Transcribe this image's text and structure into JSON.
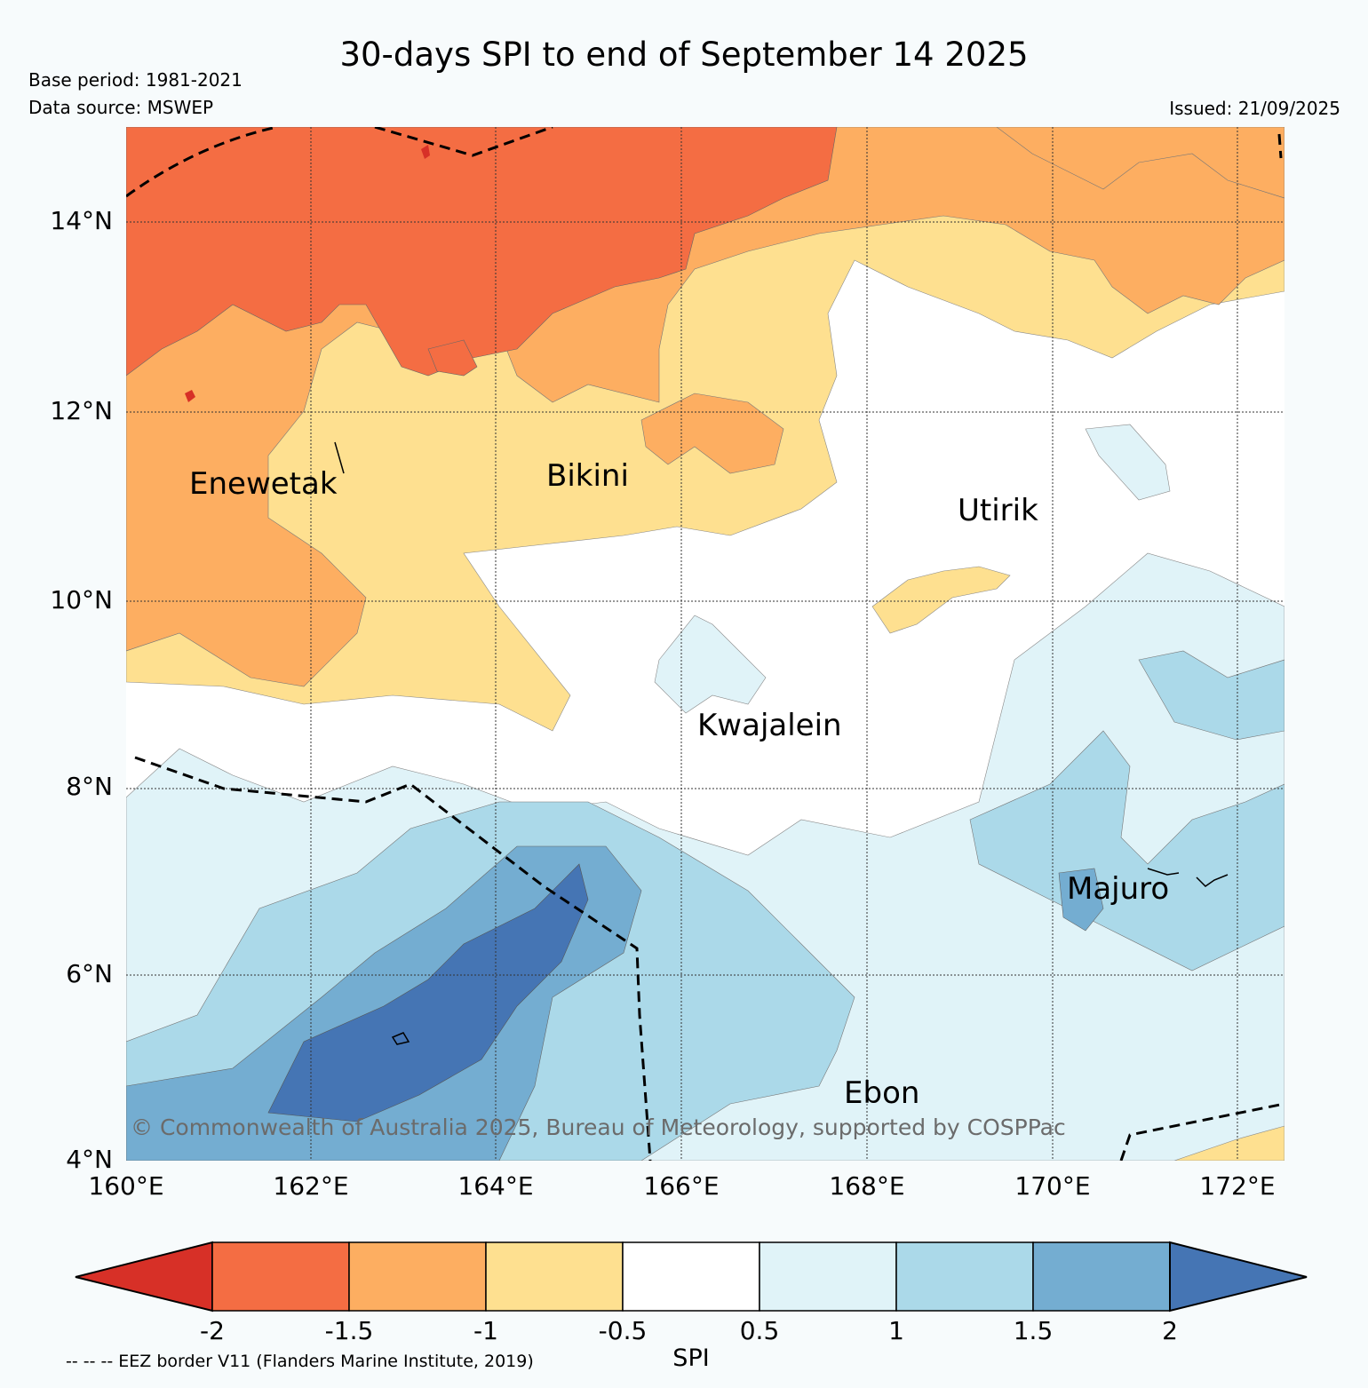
{
  "title": "30-days SPI to end of September 14 2025",
  "base_period": "Base period: 1981-2021",
  "data_source": "Data source: MSWEP",
  "issued": "Issued: 21/09/2025",
  "latitude_labels": [
    "14°N",
    "12°N",
    "10°N",
    "8°N",
    "6°N",
    "4°N"
  ],
  "longitude_labels": [
    "160°E",
    "162°E",
    "164°E",
    "166°E",
    "168°E",
    "170°E",
    "172°E"
  ],
  "places": {
    "enewetak": "Enewetak",
    "bikini": "Bikini",
    "utirik": "Utirik",
    "kwajalein": "Kwajalein",
    "majuro": "Majuro",
    "ebon": "Ebon"
  },
  "copyright": "© Commonwealth of Australia 2025, Bureau of Meteorology, supported by COSPPac",
  "colorbar": {
    "label": "SPI",
    "ticks": [
      "-2",
      "-1.5",
      "-1",
      "-0.5",
      "0.5",
      "1",
      "1.5",
      "2"
    ],
    "colors": [
      "#d73027",
      "#f46d43",
      "#fdae61",
      "#fee090",
      "#ffffff",
      "#e0f3f8",
      "#abd9e9",
      "#74add1",
      "#4575b4"
    ]
  },
  "eez_note": "-- -- -- EEZ border V11 (Flanders Marine Institute, 2019)"
}
